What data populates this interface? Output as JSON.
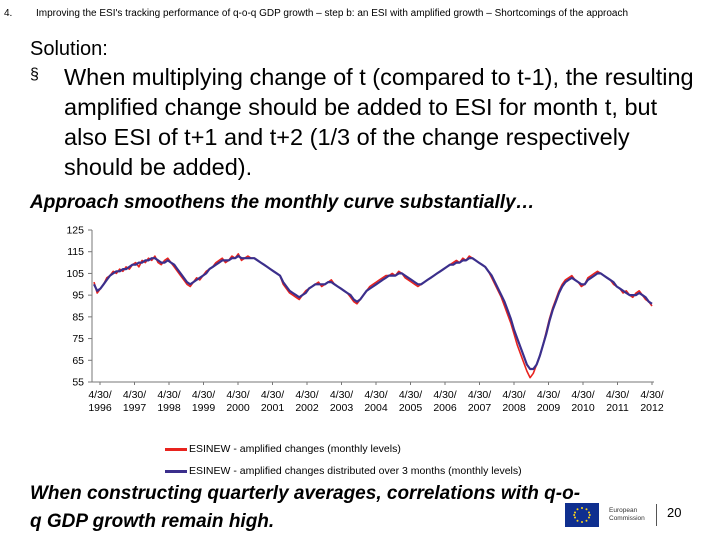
{
  "header": {
    "number": "4.",
    "title": "Improving the ESI's tracking performance of q-o-q GDP growth – step b: an ESI with amplified growth – Shortcomings of the approach"
  },
  "solution_label": "Solution:",
  "bullet_symbol": "§",
  "bullet_text": "When multiplying change of t (compared to t-1), the resulting amplified change should be added to ESI for month t, but also ESI of t+1 and t+2 (1/3 of the change respectively should be added).",
  "subheading": "Approach smoothens the monthly curve substantially…",
  "footer_text": "When constructing quarterly averages, correlations with q-o-q GDP growth remain high.",
  "logo": {
    "line1": "European",
    "line2": "Commission"
  },
  "page_number": "20",
  "colors": {
    "series1": "#e8231e",
    "series2": "#3b2f8c"
  },
  "chart_data": {
    "type": "line",
    "title": "",
    "xlabel": "",
    "ylabel": "",
    "ylim": [
      55,
      125
    ],
    "yticks": [
      125,
      115,
      105,
      95,
      85,
      75,
      65,
      55
    ],
    "xtick_labels": [
      [
        "4/30/",
        "1996"
      ],
      [
        "4/30/",
        "1997"
      ],
      [
        "4/30/",
        "1998"
      ],
      [
        "4/30/",
        "1999"
      ],
      [
        "4/30/",
        "2000"
      ],
      [
        "4/30/",
        "2001"
      ],
      [
        "4/30/",
        "2002"
      ],
      [
        "4/30/",
        "2003"
      ],
      [
        "4/30/",
        "2004"
      ],
      [
        "4/30/",
        "2005"
      ],
      [
        "4/30/",
        "2006"
      ],
      [
        "4/30/",
        "2007"
      ],
      [
        "4/30/",
        "2008"
      ],
      [
        "4/30/",
        "2009"
      ],
      [
        "4/30/",
        "2010"
      ],
      [
        "4/30/",
        "2011"
      ],
      [
        "4/30/",
        "2012"
      ]
    ],
    "grid": false,
    "legend_position": "bottom",
    "x_start": "1996-04",
    "series": [
      {
        "name": "ESINEW - amplified changes (monthly levels)",
        "color": "#e8231e",
        "values": [
          101,
          96,
          98,
          100,
          103,
          104,
          106,
          105,
          107,
          106,
          108,
          107,
          109,
          110,
          108,
          111,
          110,
          112,
          111,
          113,
          110,
          109,
          111,
          112,
          110,
          108,
          106,
          104,
          102,
          100,
          99,
          101,
          103,
          102,
          104,
          106,
          107,
          108,
          110,
          111,
          112,
          110,
          111,
          113,
          112,
          114,
          111,
          112,
          113,
          112,
          112,
          111,
          110,
          109,
          108,
          107,
          106,
          105,
          104,
          100,
          98,
          96,
          95,
          94,
          93,
          95,
          97,
          98,
          99,
          100,
          101,
          99,
          100,
          101,
          102,
          100,
          99,
          98,
          97,
          96,
          94,
          92,
          91,
          93,
          95,
          97,
          99,
          100,
          101,
          102,
          103,
          104,
          104,
          105,
          104,
          106,
          105,
          103,
          102,
          101,
          100,
          99,
          100,
          101,
          102,
          103,
          104,
          105,
          106,
          107,
          108,
          109,
          110,
          111,
          110,
          112,
          111,
          113,
          112,
          111,
          110,
          109,
          108,
          106,
          103,
          100,
          97,
          94,
          90,
          86,
          82,
          77,
          72,
          68,
          64,
          60,
          57,
          59,
          63,
          67,
          72,
          78,
          84,
          89,
          93,
          97,
          100,
          102,
          103,
          104,
          102,
          101,
          99,
          100,
          103,
          104,
          105,
          106,
          105,
          104,
          103,
          102,
          100,
          99,
          98,
          96,
          97,
          95,
          94,
          96,
          97,
          95,
          93,
          92,
          90
        ]
      },
      {
        "name": "ESINEW - amplified changes distributed over 3 months (monthly levels)",
        "color": "#3b2f8c",
        "values": [
          100,
          97,
          98,
          100,
          102,
          104,
          105,
          106,
          106,
          107,
          107,
          108,
          109,
          109,
          110,
          110,
          111,
          111,
          112,
          112,
          111,
          110,
          110,
          111,
          110,
          109,
          107,
          105,
          103,
          101,
          100,
          101,
          102,
          103,
          104,
          105,
          107,
          108,
          109,
          110,
          111,
          111,
          111,
          112,
          112,
          113,
          112,
          112,
          112,
          112,
          112,
          111,
          110,
          109,
          108,
          107,
          106,
          105,
          104,
          101,
          99,
          97,
          96,
          95,
          94,
          95,
          96,
          98,
          99,
          100,
          100,
          100,
          100,
          101,
          101,
          100,
          99,
          98,
          97,
          96,
          95,
          93,
          92,
          93,
          95,
          97,
          98,
          99,
          100,
          101,
          102,
          103,
          104,
          104,
          104,
          105,
          105,
          104,
          103,
          102,
          101,
          100,
          100,
          101,
          102,
          103,
          104,
          105,
          106,
          107,
          108,
          109,
          109,
          110,
          110,
          111,
          111,
          112,
          112,
          111,
          110,
          109,
          108,
          106,
          104,
          101,
          98,
          95,
          92,
          88,
          84,
          79,
          75,
          71,
          67,
          63,
          61,
          61,
          63,
          67,
          72,
          77,
          83,
          88,
          92,
          96,
          99,
          101,
          102,
          103,
          102,
          101,
          100,
          100,
          102,
          103,
          104,
          105,
          105,
          104,
          103,
          102,
          101,
          99,
          98,
          97,
          96,
          95,
          95,
          95,
          96,
          95,
          94,
          92,
          91
        ]
      }
    ]
  }
}
